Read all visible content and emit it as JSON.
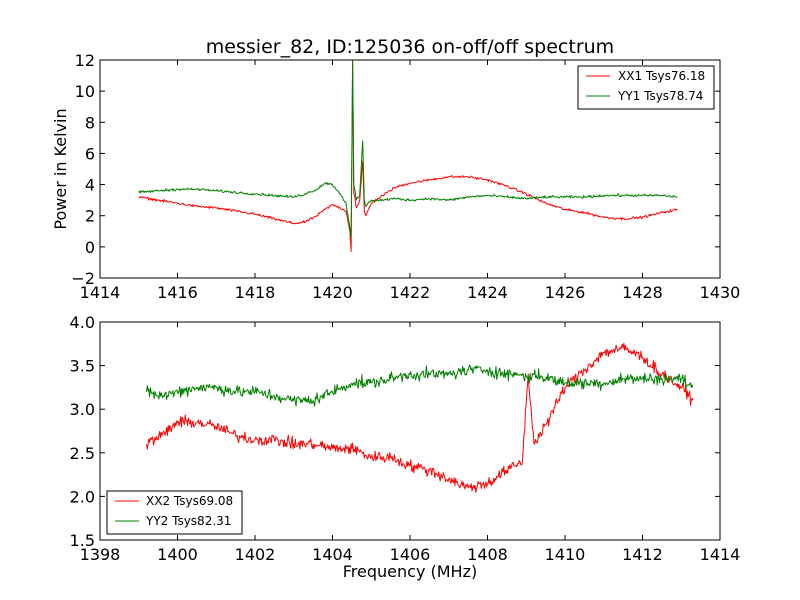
{
  "colors": {
    "xx": "#ff0000",
    "yy": "#008000",
    "frame": "#000000",
    "background": "#ffffff"
  },
  "chart_data": [
    {
      "type": "line",
      "title": "messier_82, ID:125036 on-off/off spectrum",
      "xlabel": "",
      "ylabel": "Power in Kelvin",
      "xlim": [
        1414,
        1430
      ],
      "ylim": [
        -2,
        12
      ],
      "xticks": [
        "1414",
        "1416",
        "1418",
        "1420",
        "1422",
        "1424",
        "1426",
        "1428",
        "1430"
      ],
      "yticks": [
        "−2",
        "0",
        "2",
        "4",
        "6",
        "8",
        "10",
        "12"
      ],
      "legend_position": "top-right",
      "grid": false,
      "series": [
        {
          "name": "XX1 Tsys76.18",
          "color": "#ff0000",
          "x": [
            1415.0,
            1415.5,
            1416.0,
            1416.5,
            1417.0,
            1417.5,
            1418.0,
            1418.5,
            1419.0,
            1419.3,
            1419.6,
            1419.8,
            1420.0,
            1420.2,
            1420.35,
            1420.45,
            1420.48,
            1420.52,
            1420.55,
            1420.62,
            1420.7,
            1420.78,
            1420.82,
            1420.86,
            1421.0,
            1421.3,
            1421.6,
            1422.0,
            1422.5,
            1423.0,
            1423.5,
            1424.0,
            1424.5,
            1425.0,
            1425.5,
            1426.0,
            1426.5,
            1427.0,
            1427.5,
            1428.0,
            1428.5,
            1428.9
          ],
          "values": [
            3.2,
            3.0,
            2.8,
            2.6,
            2.5,
            2.3,
            2.1,
            1.8,
            1.5,
            1.6,
            2.0,
            2.4,
            2.7,
            2.5,
            2.3,
            1.0,
            -0.3,
            11.9,
            3.5,
            2.5,
            2.9,
            5.5,
            2.3,
            2.0,
            2.8,
            3.3,
            3.8,
            4.1,
            4.3,
            4.5,
            4.5,
            4.3,
            3.9,
            3.4,
            2.8,
            2.4,
            2.2,
            1.9,
            1.8,
            1.9,
            2.2,
            2.4
          ]
        },
        {
          "name": "YY1 Tsys78.74",
          "color": "#008000",
          "x": [
            1415.0,
            1415.5,
            1416.0,
            1416.5,
            1417.0,
            1417.5,
            1418.0,
            1418.5,
            1419.0,
            1419.3,
            1419.6,
            1419.8,
            1420.0,
            1420.2,
            1420.35,
            1420.45,
            1420.48,
            1420.52,
            1420.55,
            1420.62,
            1420.7,
            1420.78,
            1420.82,
            1420.86,
            1421.0,
            1421.3,
            1421.6,
            1422.0,
            1422.5,
            1423.0,
            1423.5,
            1424.0,
            1424.5,
            1425.0,
            1425.5,
            1426.0,
            1426.5,
            1427.0,
            1427.5,
            1428.0,
            1428.5,
            1428.9
          ],
          "values": [
            3.5,
            3.6,
            3.7,
            3.7,
            3.6,
            3.5,
            3.4,
            3.3,
            3.2,
            3.4,
            3.7,
            4.1,
            4.0,
            3.4,
            2.8,
            1.2,
            0.6,
            12.0,
            4.0,
            3.0,
            3.3,
            6.8,
            3.0,
            2.6,
            3.0,
            3.0,
            3.1,
            3.0,
            3.1,
            3.0,
            3.2,
            3.3,
            3.2,
            3.1,
            3.2,
            3.2,
            3.2,
            3.3,
            3.3,
            3.3,
            3.3,
            3.2
          ]
        }
      ]
    },
    {
      "type": "line",
      "title": "",
      "xlabel": "Frequency (MHz)",
      "ylabel": "",
      "xlim": [
        1398,
        1414
      ],
      "ylim": [
        1.5,
        4.0
      ],
      "xticks": [
        "1398",
        "1400",
        "1402",
        "1404",
        "1406",
        "1408",
        "1410",
        "1412",
        "1414"
      ],
      "yticks": [
        "1.5",
        "2.0",
        "2.5",
        "3.0",
        "3.5",
        "4.0"
      ],
      "legend_position": "bottom-left",
      "grid": false,
      "series": [
        {
          "name": "XX2 Tsys69.08",
          "color": "#ff0000",
          "x": [
            1399.2,
            1399.6,
            1400.0,
            1400.5,
            1401.0,
            1401.5,
            1402.0,
            1402.5,
            1403.0,
            1403.5,
            1404.0,
            1404.5,
            1405.0,
            1405.5,
            1406.0,
            1406.5,
            1407.0,
            1407.5,
            1408.0,
            1408.5,
            1408.9,
            1409.05,
            1409.2,
            1409.6,
            1410.0,
            1410.5,
            1411.0,
            1411.5,
            1412.0,
            1412.5,
            1413.0,
            1413.3
          ],
          "values": [
            2.6,
            2.7,
            2.85,
            2.85,
            2.8,
            2.7,
            2.65,
            2.65,
            2.6,
            2.6,
            2.55,
            2.55,
            2.45,
            2.45,
            2.35,
            2.3,
            2.2,
            2.1,
            2.15,
            2.3,
            2.4,
            3.4,
            2.6,
            2.9,
            3.25,
            3.45,
            3.65,
            3.7,
            3.6,
            3.4,
            3.25,
            3.1
          ]
        },
        {
          "name": "YY2 Tsys82.31",
          "color": "#008000",
          "x": [
            1399.2,
            1399.6,
            1400.0,
            1400.5,
            1401.0,
            1401.5,
            1402.0,
            1402.5,
            1403.0,
            1403.5,
            1404.0,
            1404.5,
            1405.0,
            1405.5,
            1406.0,
            1406.5,
            1407.0,
            1407.5,
            1408.0,
            1408.5,
            1408.9,
            1409.05,
            1409.2,
            1409.6,
            1410.0,
            1410.5,
            1411.0,
            1411.5,
            1412.0,
            1412.5,
            1413.0,
            1413.3
          ],
          "values": [
            3.2,
            3.15,
            3.2,
            3.25,
            3.25,
            3.2,
            3.2,
            3.15,
            3.1,
            3.1,
            3.2,
            3.3,
            3.3,
            3.35,
            3.4,
            3.4,
            3.4,
            3.45,
            3.45,
            3.4,
            3.4,
            3.35,
            3.4,
            3.35,
            3.3,
            3.3,
            3.3,
            3.35,
            3.35,
            3.35,
            3.35,
            3.25
          ]
        }
      ]
    }
  ]
}
